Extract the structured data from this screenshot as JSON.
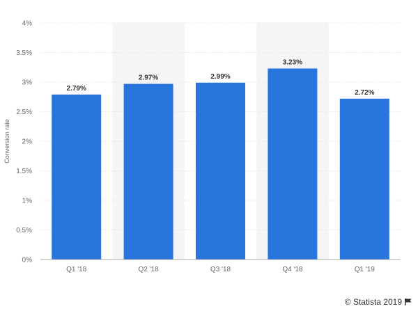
{
  "chart_data": {
    "type": "bar",
    "categories": [
      "Q1 '18",
      "Q2 '18",
      "Q3 '18",
      "Q4 '18",
      "Q1 '19"
    ],
    "values": [
      2.79,
      2.97,
      2.99,
      3.23,
      2.72
    ],
    "value_labels": [
      "2.79%",
      "2.97%",
      "2.99%",
      "3.23%",
      "2.72%"
    ],
    "ylabel": "Conversion rate",
    "ylim": [
      0,
      4
    ],
    "yticks": [
      0,
      0.5,
      1,
      1.5,
      2,
      2.5,
      3,
      3.5,
      4
    ],
    "ytick_labels": [
      "0%",
      "0.5%",
      "1%",
      "1.5%",
      "2%",
      "2.5%",
      "3%",
      "3.5%",
      "4%"
    ],
    "bar_color": "#2876dd",
    "alt_band_color": "#f5f5f5",
    "grid": true
  },
  "credit": {
    "text": "© Statista 2019",
    "icon": "flag-icon"
  }
}
